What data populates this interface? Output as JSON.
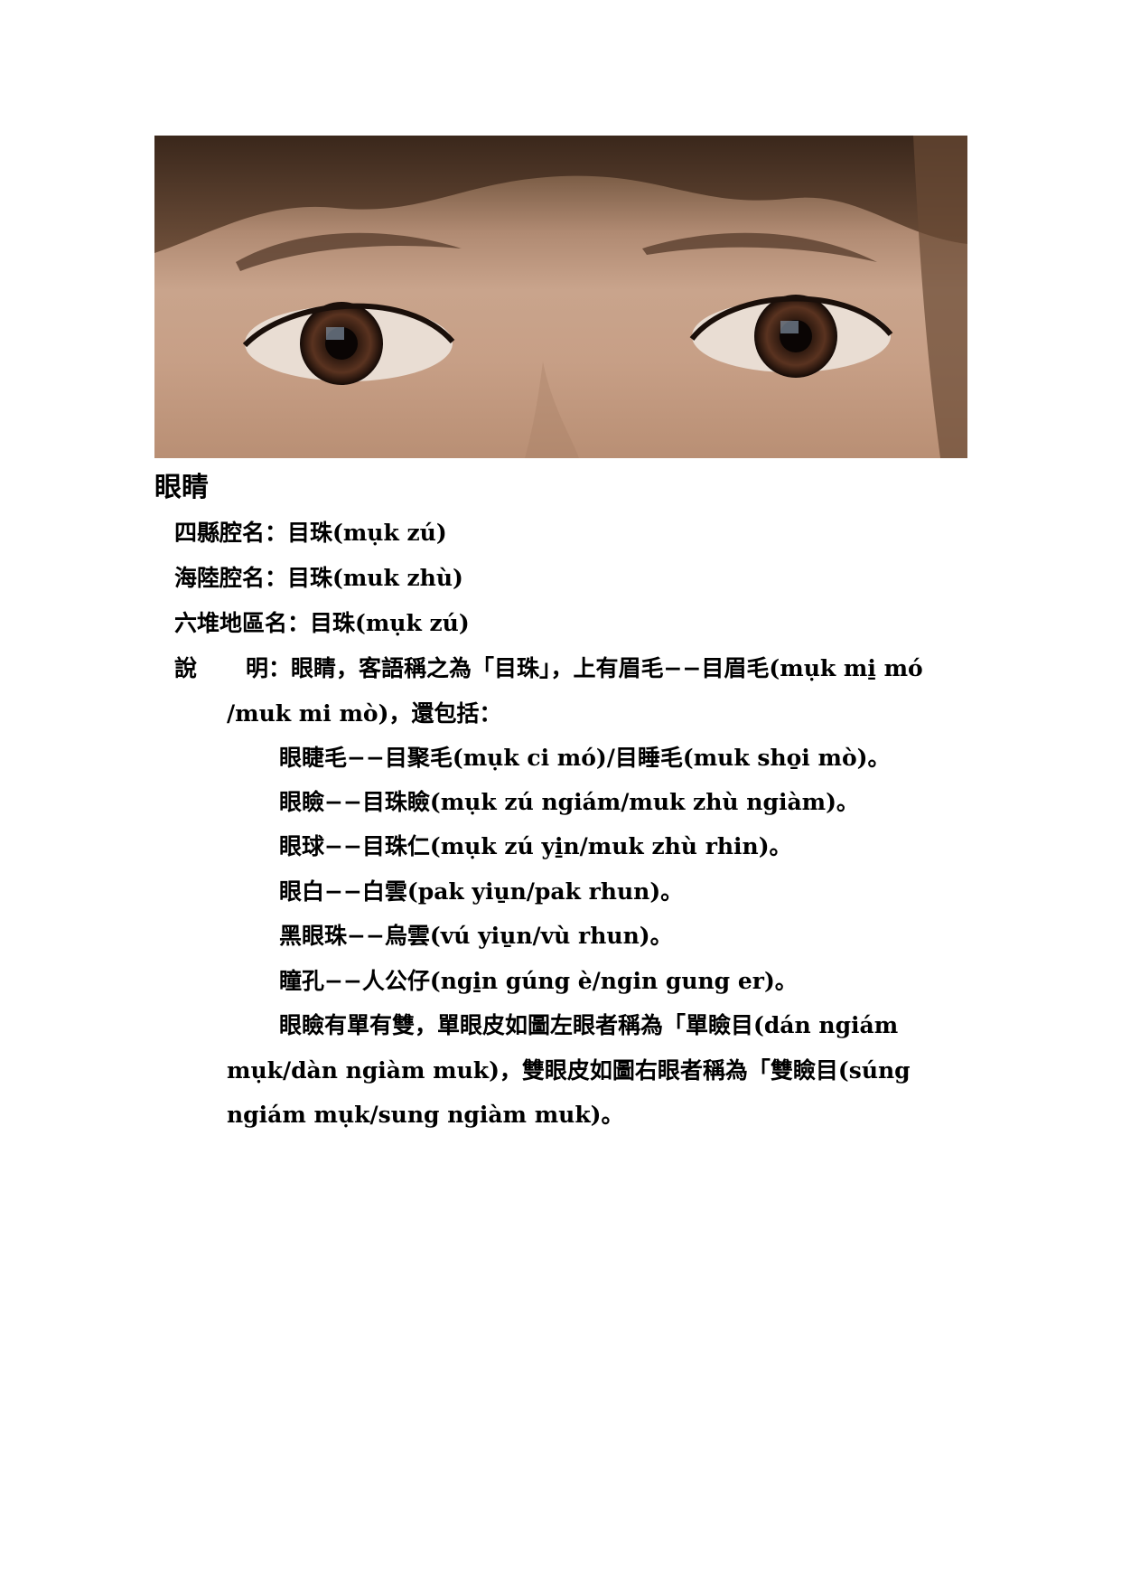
{
  "photo": {
    "subject": "eyes-photo"
  },
  "title": "眼睛",
  "lines": {
    "sixian": "四縣腔名：目珠(mụk zú)",
    "hailu": "海陸腔名：目珠(muk zhù)",
    "liudui": "六堆地區名：目珠(mụk zú)",
    "explain_label_1": "說",
    "explain_label_2": "明",
    "explain_text": "：眼睛，客語稱之為「目珠」，上有眉毛−−目眉毛(mụk mi̱ mó",
    "explain_cont": "/muk mi mò)，還包括：",
    "eyelash": "眼睫毛−−目聚毛(mụk ci mó)/目睡毛(muk sho̱i mò)。",
    "eyelid": "眼瞼−−目珠瞼(mụk zú ngiám/muk zhù ngiàm)。",
    "eyeball": "眼球−−目珠仁(mụk zú yi̱n/muk zhù rhin)。",
    "white": "眼白−−白雲(pak yiu̱n/pak rhun)。",
    "iris": "黑眼珠−−烏雲(vú yiu̱n/vù rhun)。",
    "pupil": "瞳孔−−人公仔(ngi̱n gúng è/ngin gung er)。",
    "para1": "眼瞼有單有雙，單眼皮如圖左眼者稱為「單瞼目(dán ngiám",
    "para2": "mụk/dàn ngiàm muk)，雙眼皮如圖右眼者稱為「雙瞼目(súng",
    "para3": "ngiám mụk/sung ngiàm muk)。"
  }
}
